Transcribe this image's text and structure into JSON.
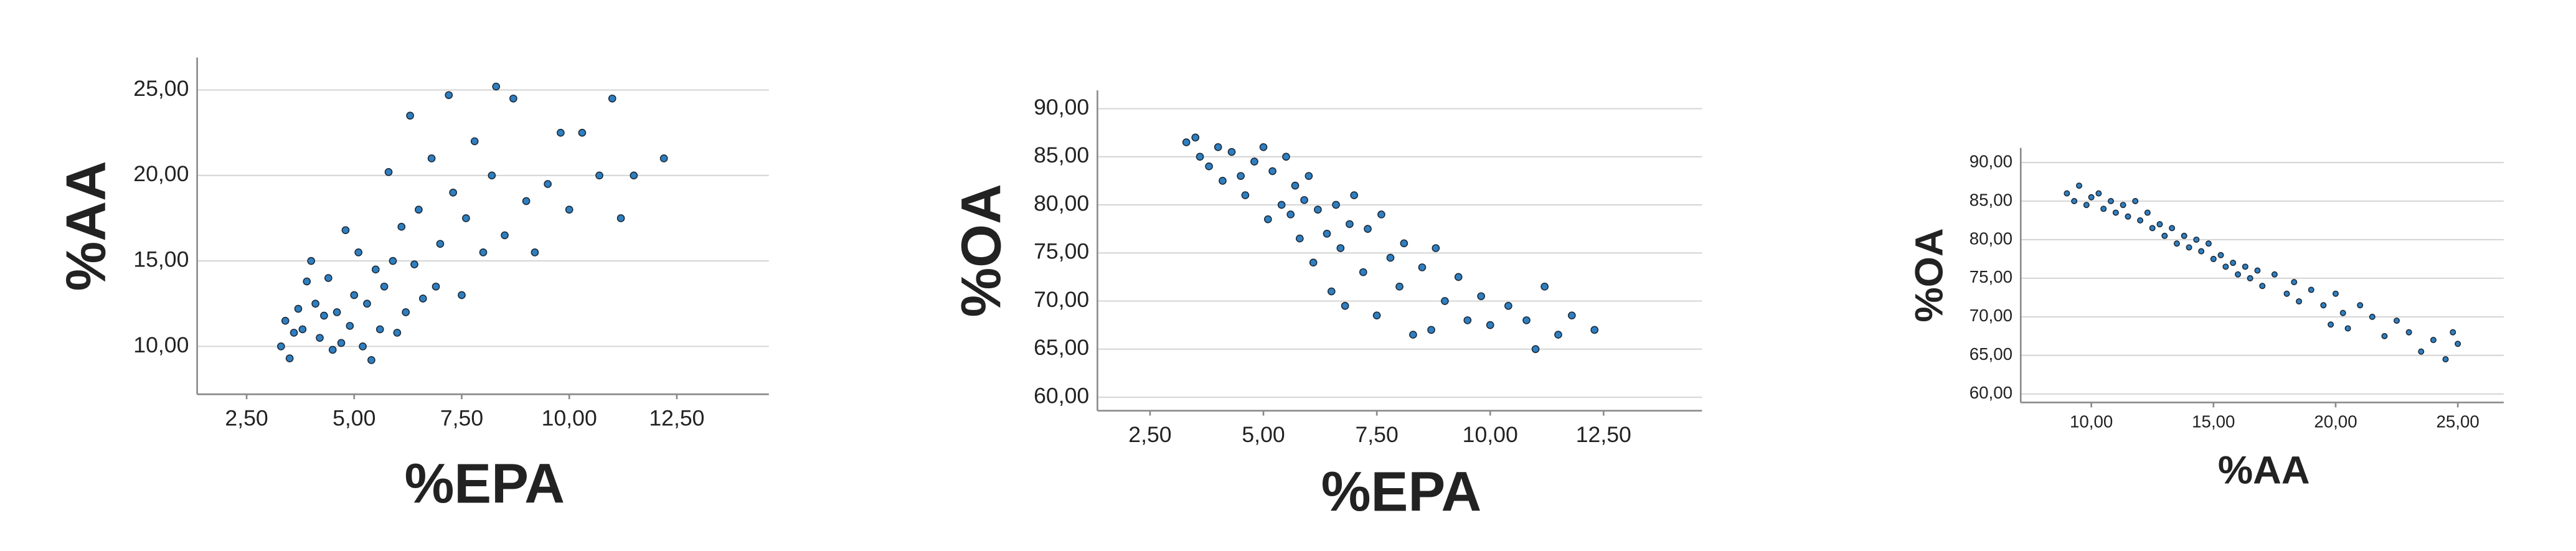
{
  "chart_data": [
    {
      "type": "scatter",
      "x_label": "%EPA",
      "y_label": "%AA",
      "color": "#2f7fc0",
      "grid": true,
      "xlim": [
        1.35,
        14.64
      ],
      "ylim": [
        7.2,
        26.9
      ],
      "xticks": [
        {
          "value": 2.5,
          "label": "2,50"
        },
        {
          "value": 5,
          "label": "5,00"
        },
        {
          "value": 7.5,
          "label": "7,50"
        },
        {
          "value": 10,
          "label": "10,00"
        },
        {
          "value": 12.5,
          "label": "12,50"
        }
      ],
      "yticks": [
        {
          "value": 10,
          "label": "10,00"
        },
        {
          "value": 15,
          "label": "15,00"
        },
        {
          "value": 20,
          "label": "20,00"
        },
        {
          "value": 25,
          "label": "25,00"
        }
      ],
      "x": [
        3.3,
        3.4,
        3.5,
        3.6,
        3.7,
        3.8,
        3.9,
        4.0,
        4.1,
        4.2,
        4.3,
        4.4,
        4.5,
        4.6,
        4.7,
        4.8,
        4.9,
        5.0,
        5.1,
        5.2,
        5.3,
        5.4,
        5.5,
        5.6,
        5.7,
        5.8,
        5.9,
        6.0,
        6.1,
        6.2,
        6.3,
        6.4,
        6.5,
        6.6,
        6.8,
        6.9,
        7.0,
        7.2,
        7.3,
        7.5,
        7.6,
        7.8,
        8.0,
        8.2,
        8.3,
        8.5,
        8.7,
        9.0,
        9.2,
        9.5,
        9.8,
        10.0,
        10.3,
        10.7,
        11.0,
        11.2,
        11.5,
        12.2
      ],
      "values": [
        10.0,
        11.5,
        9.3,
        10.8,
        12.2,
        11.0,
        13.8,
        15.0,
        12.5,
        10.5,
        11.8,
        14.0,
        9.8,
        12.0,
        10.2,
        16.8,
        11.2,
        13.0,
        15.5,
        10.0,
        12.5,
        9.2,
        14.5,
        11.0,
        13.5,
        20.2,
        15.0,
        10.8,
        17.0,
        12.0,
        23.5,
        14.8,
        18.0,
        12.8,
        21.0,
        13.5,
        16.0,
        24.7,
        19.0,
        13.0,
        17.5,
        22.0,
        15.5,
        20.0,
        25.2,
        16.5,
        24.5,
        18.5,
        15.5,
        19.5,
        22.5,
        18.0,
        22.5,
        20.0,
        24.5,
        17.5,
        20.0,
        21.0
      ]
    },
    {
      "type": "scatter",
      "x_label": "%EPA",
      "y_label": "%OA",
      "color": "#2f7fc0",
      "grid": true,
      "xlim": [
        1.34,
        14.67
      ],
      "ylim": [
        58.6,
        91.9
      ],
      "xticks": [
        {
          "value": 2.5,
          "label": "2,50"
        },
        {
          "value": 5,
          "label": "5,00"
        },
        {
          "value": 7.5,
          "label": "7,50"
        },
        {
          "value": 10,
          "label": "10,00"
        },
        {
          "value": 12.5,
          "label": "12,50"
        }
      ],
      "yticks": [
        {
          "value": 60,
          "label": "60,00"
        },
        {
          "value": 65,
          "label": "65,00"
        },
        {
          "value": 70,
          "label": "70,00"
        },
        {
          "value": 75,
          "label": "75,00"
        },
        {
          "value": 80,
          "label": "80,00"
        },
        {
          "value": 85,
          "label": "85,00"
        },
        {
          "value": 90,
          "label": "90,00"
        }
      ],
      "x": [
        3.3,
        3.5,
        3.6,
        3.8,
        4.0,
        4.1,
        4.3,
        4.5,
        4.6,
        4.8,
        5.0,
        5.1,
        5.2,
        5.4,
        5.5,
        5.6,
        5.7,
        5.8,
        5.9,
        6.0,
        6.1,
        6.2,
        6.4,
        6.5,
        6.6,
        6.7,
        6.8,
        6.9,
        7.0,
        7.2,
        7.3,
        7.5,
        7.6,
        7.8,
        8.0,
        8.1,
        8.3,
        8.5,
        8.7,
        8.8,
        9.0,
        9.3,
        9.5,
        9.8,
        10.0,
        10.4,
        10.8,
        11.0,
        11.2,
        11.5,
        11.8,
        12.3
      ],
      "values": [
        86.5,
        87.0,
        85.0,
        84.0,
        86.0,
        82.5,
        85.5,
        83.0,
        81.0,
        84.5,
        86.0,
        78.5,
        83.5,
        80.0,
        85.0,
        79.0,
        82.0,
        76.5,
        80.5,
        83.0,
        74.0,
        79.5,
        77.0,
        71.0,
        80.0,
        75.5,
        69.5,
        78.0,
        81.0,
        73.0,
        77.5,
        68.5,
        79.0,
        74.5,
        71.5,
        76.0,
        66.5,
        73.5,
        67.0,
        75.5,
        70.0,
        72.5,
        68.0,
        70.5,
        67.5,
        69.5,
        68.0,
        65.0,
        71.5,
        66.5,
        68.5,
        67.0
      ]
    },
    {
      "type": "scatter",
      "x_label": "%AA",
      "y_label": "%OA",
      "color": "#2f7fc0",
      "grid": true,
      "xlim": [
        7.11,
        26.88
      ],
      "ylim": [
        58.9,
        91.9
      ],
      "xticks": [
        {
          "value": 10,
          "label": "10,00"
        },
        {
          "value": 15,
          "label": "15,00"
        },
        {
          "value": 20,
          "label": "20,00"
        },
        {
          "value": 25,
          "label": "25,00"
        }
      ],
      "yticks": [
        {
          "value": 60,
          "label": "60,00"
        },
        {
          "value": 65,
          "label": "65,00"
        },
        {
          "value": 70,
          "label": "70,00"
        },
        {
          "value": 75,
          "label": "75,00"
        },
        {
          "value": 80,
          "label": "80,00"
        },
        {
          "value": 85,
          "label": "85,00"
        },
        {
          "value": 90,
          "label": "90,00"
        }
      ],
      "x": [
        9.0,
        9.3,
        9.5,
        9.8,
        10.0,
        10.3,
        10.5,
        10.8,
        11.0,
        11.3,
        11.5,
        11.8,
        12.0,
        12.3,
        12.5,
        12.8,
        13.0,
        13.3,
        13.5,
        13.8,
        14.0,
        14.3,
        14.5,
        14.8,
        15.0,
        15.3,
        15.5,
        15.8,
        16.0,
        16.3,
        16.5,
        16.8,
        17.0,
        17.5,
        18.0,
        18.3,
        18.5,
        19.0,
        19.5,
        19.8,
        20.0,
        20.3,
        20.5,
        21.0,
        21.5,
        22.0,
        22.5,
        23.0,
        23.5,
        24.0,
        24.5,
        24.8,
        25.0
      ],
      "values": [
        86.0,
        85.0,
        87.0,
        84.5,
        85.5,
        86.0,
        84.0,
        85.0,
        83.5,
        84.5,
        83.0,
        85.0,
        82.5,
        83.5,
        81.5,
        82.0,
        80.5,
        81.5,
        79.5,
        80.5,
        79.0,
        80.0,
        78.5,
        79.5,
        77.5,
        78.0,
        76.5,
        77.0,
        75.5,
        76.5,
        75.0,
        76.0,
        74.0,
        75.5,
        73.0,
        74.5,
        72.0,
        73.5,
        71.5,
        69.0,
        73.0,
        70.5,
        68.5,
        71.5,
        70.0,
        67.5,
        69.5,
        68.0,
        65.5,
        67.0,
        64.5,
        68.0,
        66.5
      ]
    }
  ]
}
